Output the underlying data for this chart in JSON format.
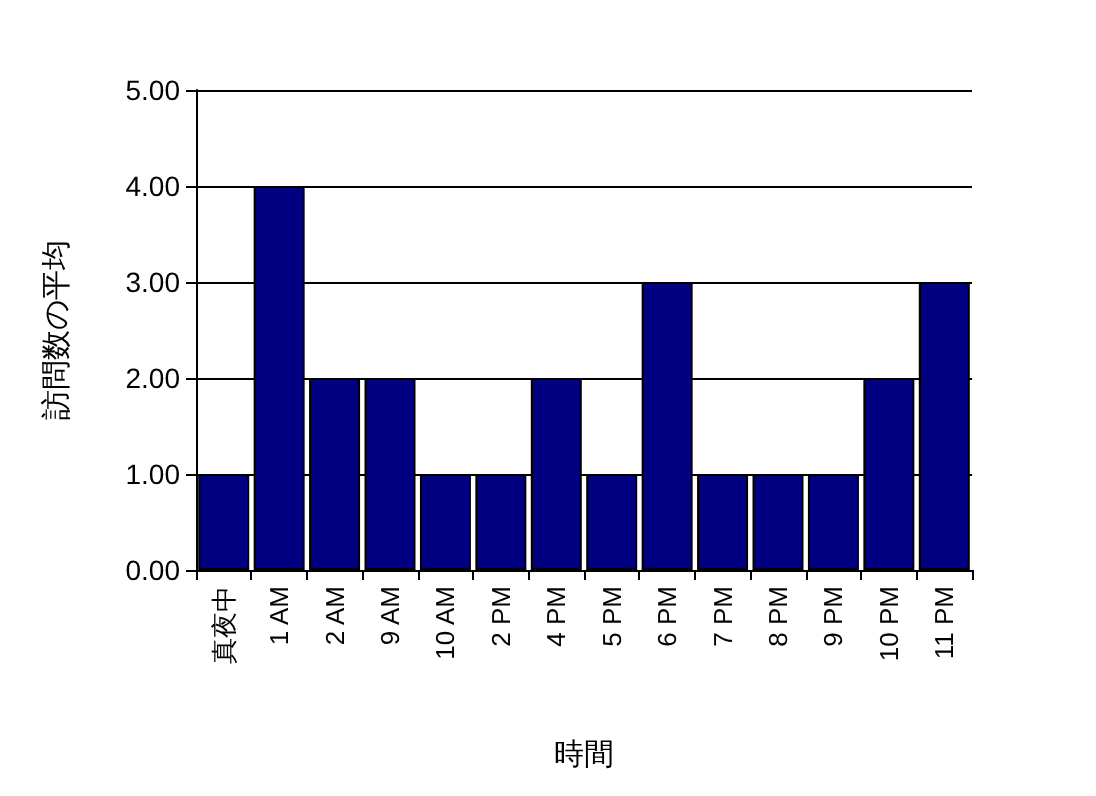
{
  "chart_data": {
    "type": "bar",
    "xlabel": "時間",
    "ylabel": "訪問数の平均",
    "categories": [
      "真夜中",
      "1 AM",
      "2 AM",
      "9 AM",
      "10 AM",
      "2 PM",
      "4 PM",
      "5 PM",
      "6 PM",
      "7 PM",
      "8 PM",
      "9 PM",
      "10 PM",
      "11 PM"
    ],
    "values": [
      1,
      4,
      2,
      2,
      1,
      1,
      2,
      1,
      3,
      1,
      1,
      1,
      2,
      3
    ],
    "color": "#000080",
    "ylim": [
      0,
      5
    ],
    "yticks": [
      {
        "value": 0,
        "label": "0.00"
      },
      {
        "value": 1,
        "label": "1.00"
      },
      {
        "value": 2,
        "label": "2.00"
      },
      {
        "value": 3,
        "label": "3.00"
      },
      {
        "value": 4,
        "label": "4.00"
      },
      {
        "value": 5,
        "label": "5.00"
      }
    ],
    "grid": "y"
  }
}
